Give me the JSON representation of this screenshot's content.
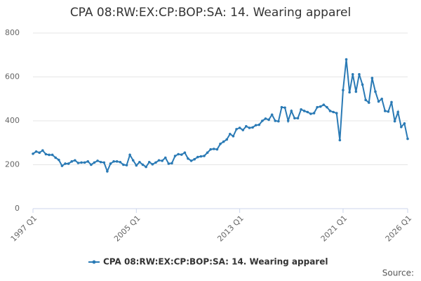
{
  "chart_data": {
    "type": "line",
    "title": "CPA 08:RW:EX:CP:BOP:SA: 14. Wearing apparel",
    "categories": [
      "1997 Q1",
      null,
      null,
      null,
      null,
      null,
      null,
      null,
      null,
      null,
      null,
      null,
      null,
      null,
      null,
      null,
      null,
      null,
      null,
      null,
      null,
      null,
      null,
      null,
      null,
      null,
      null,
      null,
      null,
      null,
      null,
      null,
      "2005 Q1",
      null,
      null,
      null,
      null,
      null,
      null,
      null,
      null,
      null,
      null,
      null,
      null,
      null,
      null,
      null,
      null,
      null,
      null,
      null,
      null,
      null,
      null,
      null,
      null,
      null,
      null,
      null,
      null,
      null,
      null,
      null,
      "2013 Q1",
      null,
      null,
      null,
      null,
      null,
      null,
      null,
      null,
      null,
      null,
      null,
      null,
      null,
      null,
      null,
      null,
      null,
      null,
      null,
      null,
      null,
      null,
      null,
      null,
      null,
      null,
      null,
      null,
      null,
      null,
      null,
      "2021 Q1",
      null,
      null,
      null,
      null,
      null,
      null,
      null,
      null,
      null,
      null,
      null,
      null,
      null,
      null,
      null,
      null,
      null,
      null,
      null,
      "2026 Q1"
    ],
    "series": [
      {
        "name": "CPA 08:RW:EX:CP:BOP:SA: 14. Wearing apparel",
        "color": "#2a7ab5",
        "values": [
          250,
          260,
          255,
          265,
          248,
          245,
          245,
          232,
          222,
          195,
          205,
          205,
          215,
          220,
          208,
          210,
          210,
          215,
          200,
          210,
          218,
          212,
          210,
          170,
          205,
          215,
          215,
          212,
          200,
          198,
          245,
          220,
          197,
          212,
          200,
          190,
          212,
          202,
          210,
          220,
          218,
          232,
          205,
          207,
          240,
          248,
          246,
          255,
          228,
          218,
          225,
          235,
          238,
          240,
          255,
          270,
          272,
          270,
          295,
          305,
          315,
          340,
          330,
          362,
          368,
          358,
          375,
          368,
          370,
          380,
          382,
          400,
          410,
          405,
          428,
          400,
          398,
          462,
          460,
          400,
          445,
          412,
          412,
          452,
          445,
          440,
          432,
          435,
          462,
          465,
          473,
          462,
          445,
          440,
          435,
          312,
          540,
          680,
          530,
          612,
          533,
          612,
          565,
          495,
          483,
          595,
          533,
          488,
          500,
          445,
          442,
          485,
          398,
          440,
          372,
          388,
          318
        ]
      }
    ],
    "ylim": [
      0,
      800
    ],
    "yticks": [
      0,
      200,
      400,
      600,
      800
    ],
    "grid": true,
    "legend": "bottom",
    "source": "Source:"
  }
}
